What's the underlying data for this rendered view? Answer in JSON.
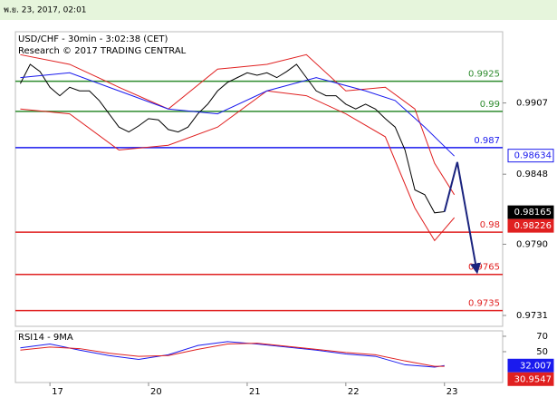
{
  "header": {
    "date": "พ.ย. 23, 2017, 02:01"
  },
  "chart_data": [
    {
      "type": "line",
      "title": "USD/CHF - 30min - 3:02:38 (CET)",
      "subtitle": "Research © 2017 TRADING CENTRAL",
      "xlim": [
        0.65,
        5.59
      ],
      "ylim": [
        0.9722,
        0.9966
      ],
      "xticks": [
        {
          "value": 1,
          "label": "17"
        },
        {
          "value": 2,
          "label": "20"
        },
        {
          "value": 3,
          "label": "21"
        },
        {
          "value": 4,
          "label": "22"
        },
        {
          "value": 5,
          "label": "23"
        }
      ],
      "yticks": [
        0.9907,
        0.9848,
        {
          "value": 0.979,
          "label": "0.9790"
        },
        0.9731
      ],
      "levels": [
        {
          "value": 0.9925,
          "color": "#2e8b2e"
        },
        {
          "value": 0.99,
          "color": "#2e8b2e"
        },
        {
          "value": 0.987,
          "color": "#1a1aee"
        },
        {
          "value": 0.98,
          "color": "#e02020"
        },
        {
          "value": 0.9765,
          "color": "#e02020"
        },
        {
          "value": 0.9735,
          "color": "#e02020"
        }
      ],
      "series": [
        {
          "name": "Price",
          "color": "#000000",
          "last_value": 0.98165,
          "x": [
            0.7,
            0.8,
            0.9,
            1.0,
            1.1,
            1.2,
            1.3,
            1.4,
            1.5,
            1.6,
            1.7,
            1.8,
            1.9,
            2.0,
            2.1,
            2.2,
            2.3,
            2.4,
            2.5,
            2.6,
            2.7,
            2.8,
            2.9,
            3.0,
            3.1,
            3.2,
            3.3,
            3.4,
            3.5,
            3.6,
            3.7,
            3.8,
            3.9,
            4.0,
            4.1,
            4.2,
            4.3,
            4.4,
            4.5,
            4.6,
            4.7,
            4.8,
            4.9,
            5.0
          ],
          "values": [
            0.9923,
            0.9939,
            0.9933,
            0.992,
            0.9913,
            0.992,
            0.9917,
            0.9917,
            0.9909,
            0.9898,
            0.9887,
            0.9883,
            0.9888,
            0.9894,
            0.9893,
            0.9885,
            0.9883,
            0.9887,
            0.9898,
            0.9906,
            0.9917,
            0.9924,
            0.9928,
            0.9932,
            0.993,
            0.9932,
            0.9928,
            0.9933,
            0.9939,
            0.9928,
            0.9917,
            0.9913,
            0.9913,
            0.9906,
            0.9902,
            0.9906,
            0.9902,
            0.9894,
            0.9887,
            0.9868,
            0.9835,
            0.9831,
            0.9816,
            0.9817
          ]
        },
        {
          "name": "Upper band",
          "color": "#e02020",
          "last_value": 0.98226,
          "x": [
            0.7,
            1.2,
            1.7,
            2.2,
            2.7,
            3.2,
            3.6,
            4.0,
            4.4,
            4.7,
            4.9,
            5.1
          ],
          "values": [
            0.9947,
            0.9939,
            0.992,
            0.9902,
            0.9935,
            0.9939,
            0.9947,
            0.9917,
            0.992,
            0.9902,
            0.9857,
            0.9831
          ]
        },
        {
          "name": "Lower band",
          "color": "#e02020",
          "x": [
            0.7,
            1.2,
            1.7,
            2.2,
            2.7,
            3.2,
            3.6,
            4.0,
            4.4,
            4.7,
            4.9,
            5.1
          ],
          "values": [
            0.9902,
            0.9898,
            0.9868,
            0.9872,
            0.9887,
            0.9917,
            0.9913,
            0.9898,
            0.9879,
            0.982,
            0.9793,
            0.9812
          ]
        },
        {
          "name": "Moving average",
          "color": "#1a1aee",
          "last_value": 0.98634,
          "x": [
            0.7,
            1.2,
            1.7,
            2.2,
            2.7,
            3.2,
            3.7,
            4.2,
            4.5,
            4.8,
            5.1
          ],
          "values": [
            0.9928,
            0.9932,
            0.9917,
            0.9902,
            0.9898,
            0.9917,
            0.9928,
            0.9917,
            0.9909,
            0.9887,
            0.9863
          ]
        },
        {
          "name": "Forecast",
          "color": "#1a237e",
          "x": [
            5.0,
            5.13,
            5.33
          ],
          "values": [
            0.9817,
            0.9858,
            0.9767
          ]
        }
      ]
    },
    {
      "type": "line",
      "title": "RSI14 - 9MA",
      "xlim": [
        0.65,
        5.59
      ],
      "ylim": [
        10,
        77
      ],
      "yticks": [
        70,
        50
      ],
      "series": [
        {
          "name": "RSI",
          "color": "#1a1aee",
          "last_value": 32.007,
          "x": [
            0.7,
            1.0,
            1.3,
            1.6,
            1.9,
            2.2,
            2.5,
            2.8,
            3.1,
            3.4,
            3.7,
            4.0,
            4.3,
            4.6,
            4.9,
            5.0
          ],
          "values": [
            55,
            60,
            52,
            45,
            40,
            46,
            58,
            63,
            60,
            56,
            52,
            47,
            44,
            33,
            30,
            32
          ]
        },
        {
          "name": "9MA",
          "color": "#e02020",
          "last_value": 30.9547,
          "x": [
            0.7,
            1.0,
            1.3,
            1.6,
            1.9,
            2.2,
            2.5,
            2.8,
            3.1,
            3.4,
            3.7,
            4.0,
            4.3,
            4.6,
            4.9,
            5.0
          ],
          "values": [
            52,
            56,
            54,
            48,
            44,
            45,
            53,
            60,
            61,
            57,
            53,
            49,
            46,
            38,
            31,
            31
          ]
        }
      ]
    }
  ]
}
